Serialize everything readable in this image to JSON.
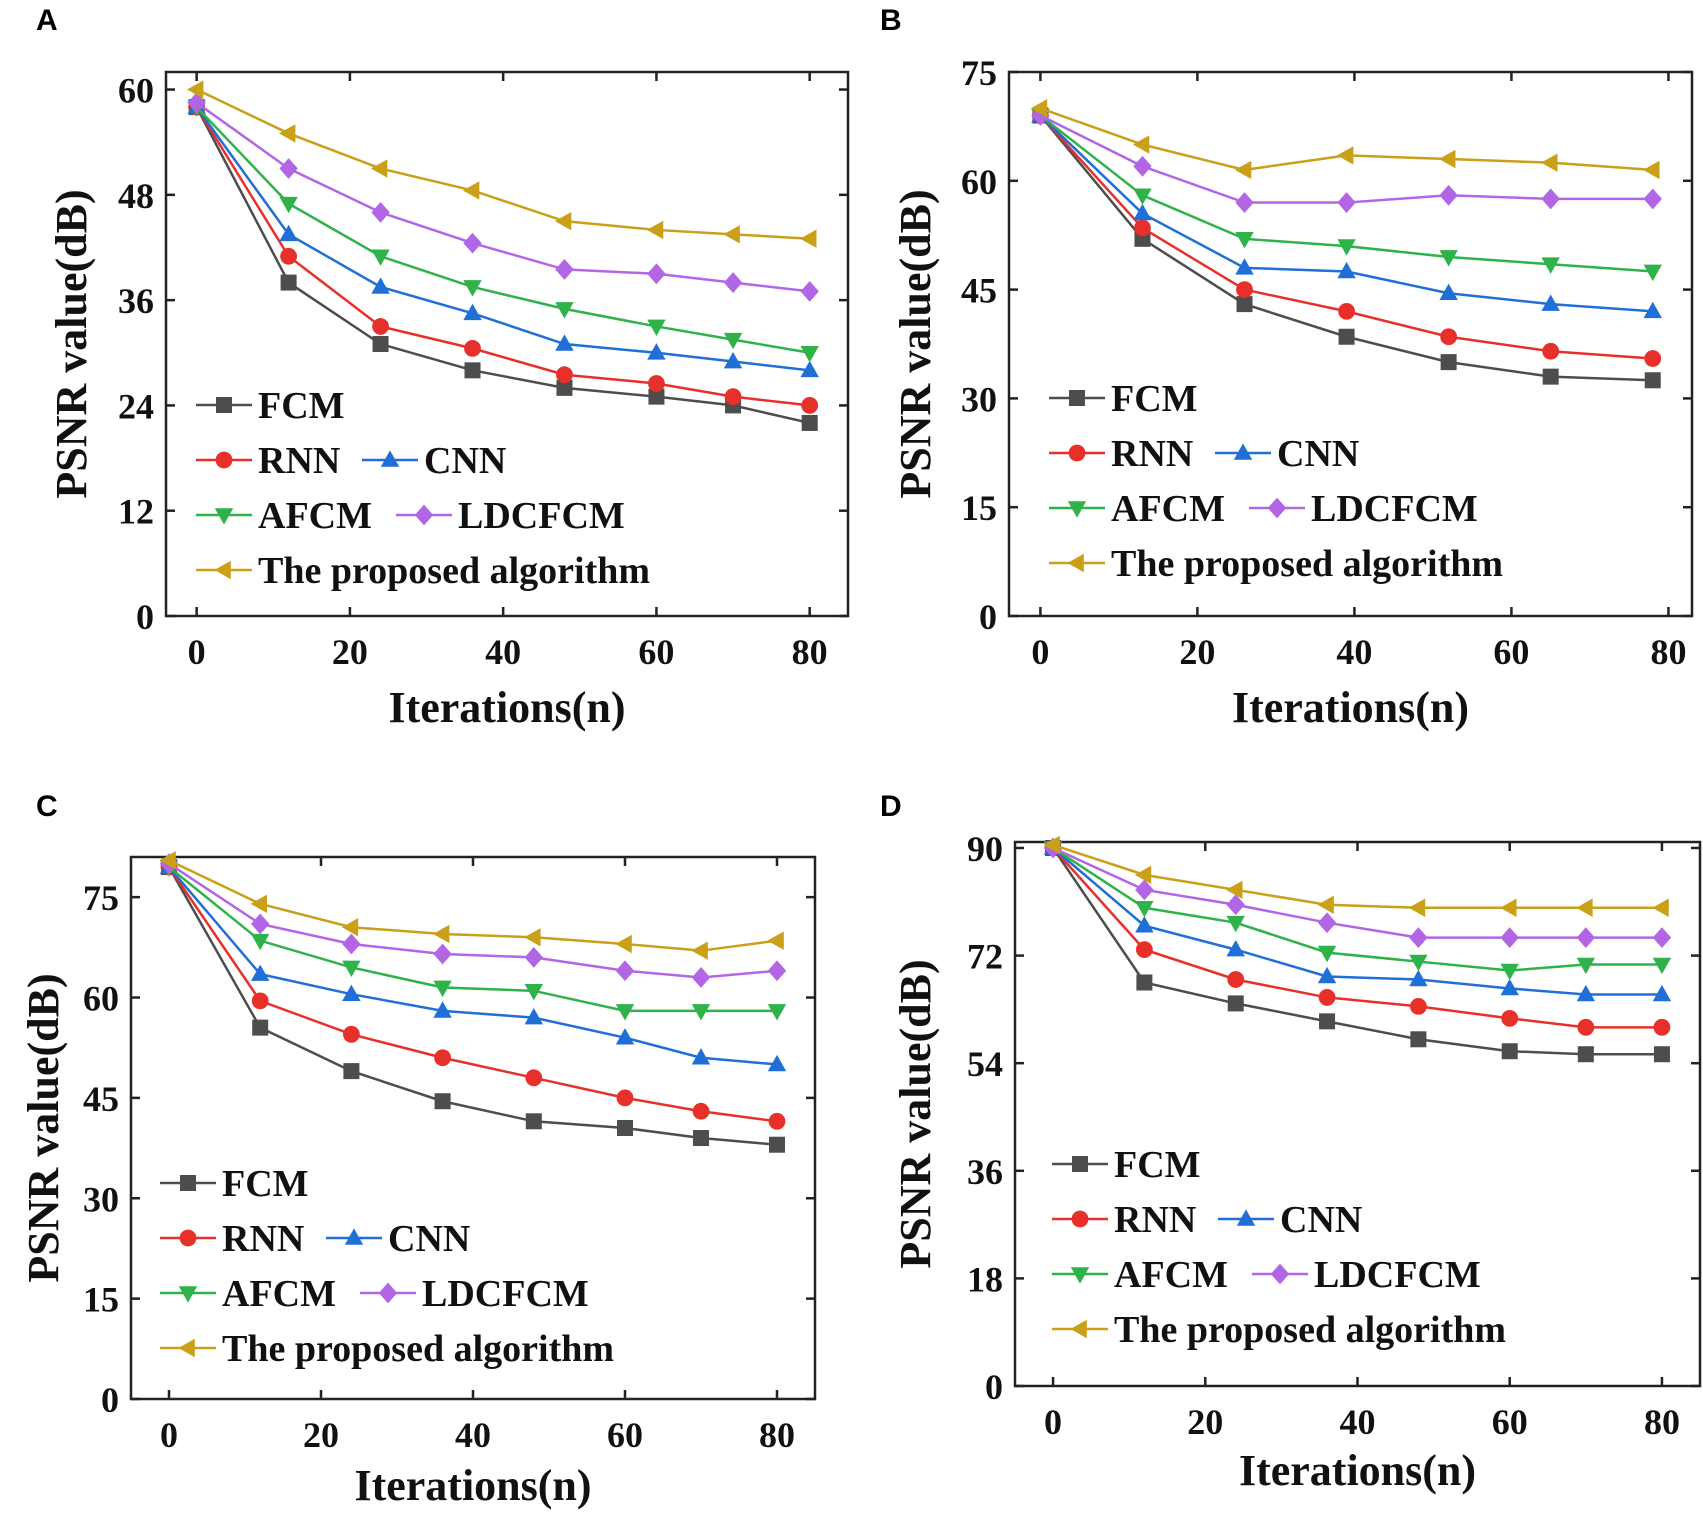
{
  "panels": [
    "A",
    "B",
    "C",
    "D"
  ],
  "series_colors": {
    "FCM": "#4d4d4d",
    "RNN": "#e8302a",
    "CNN": "#1f6fd6",
    "AFCM": "#2fb24a",
    "LDCFCM": "#b266e6",
    "The proposed algorithm": "#c9a018"
  },
  "chart_data": [
    {
      "panel": "A",
      "type": "line",
      "xlabel": "Iterations(n)",
      "ylabel": "PSNR value(dB)",
      "xlim": [
        -4,
        85
      ],
      "ylim": [
        0,
        62
      ],
      "xticks": [
        "0",
        "20",
        "40",
        "60",
        "80"
      ],
      "xtick_values": [
        0,
        20,
        40,
        60,
        80
      ],
      "yticks": [
        "0",
        "12",
        "24",
        "36",
        "48",
        "60"
      ],
      "ytick_values": [
        0,
        12,
        24,
        36,
        48,
        60
      ],
      "legend": [
        "FCM",
        "RNN",
        "CNN",
        "AFCM",
        "LDCFCM",
        "The proposed algorithm"
      ],
      "series": [
        {
          "name": "FCM",
          "x": [
            0,
            12,
            24,
            36,
            48,
            60,
            70,
            80
          ],
          "values": [
            58,
            38,
            31,
            28,
            26,
            25,
            24,
            22
          ]
        },
        {
          "name": "RNN",
          "x": [
            0,
            12,
            24,
            36,
            48,
            60,
            70,
            80
          ],
          "values": [
            58,
            41,
            33,
            30.5,
            27.5,
            26.5,
            25,
            24
          ]
        },
        {
          "name": "CNN",
          "x": [
            0,
            12,
            24,
            36,
            48,
            60,
            70,
            80
          ],
          "values": [
            58,
            43.5,
            37.5,
            34.5,
            31,
            30,
            29,
            28
          ]
        },
        {
          "name": "AFCM",
          "x": [
            0,
            12,
            24,
            36,
            48,
            60,
            70,
            80
          ],
          "values": [
            58,
            47,
            41,
            37.5,
            35,
            33,
            31.5,
            30
          ]
        },
        {
          "name": "LDCFCM",
          "x": [
            0,
            12,
            24,
            36,
            48,
            60,
            70,
            80
          ],
          "values": [
            58.5,
            51,
            46,
            42.5,
            39.5,
            39,
            38,
            37
          ]
        },
        {
          "name": "The proposed algorithm",
          "x": [
            0,
            12,
            24,
            36,
            48,
            60,
            70,
            80
          ],
          "values": [
            60,
            55,
            51,
            48.5,
            45,
            44,
            43.5,
            43
          ]
        }
      ]
    },
    {
      "panel": "B",
      "type": "line",
      "xlabel": "Iterations(n)",
      "ylabel": "PSNR value(dB)",
      "xlim": [
        -4,
        83
      ],
      "ylim": [
        0,
        75
      ],
      "xticks": [
        "0",
        "20",
        "40",
        "60",
        "80"
      ],
      "xtick_values": [
        0,
        20,
        40,
        60,
        80
      ],
      "yticks": [
        "0",
        "15",
        "30",
        "45",
        "60",
        "75"
      ],
      "ytick_values": [
        0,
        15,
        30,
        45,
        60,
        75
      ],
      "legend": [
        "FCM",
        "RNN",
        "CNN",
        "AFCM",
        "LDCFCM",
        "The proposed algorithm"
      ],
      "series": [
        {
          "name": "FCM",
          "x": [
            0,
            13,
            26,
            39,
            52,
            65,
            78
          ],
          "values": [
            69,
            52,
            43,
            38.5,
            35,
            33,
            32.5
          ]
        },
        {
          "name": "RNN",
          "x": [
            0,
            13,
            26,
            39,
            52,
            65,
            78
          ],
          "values": [
            69,
            53.5,
            45,
            42,
            38.5,
            36.5,
            35.5
          ]
        },
        {
          "name": "CNN",
          "x": [
            0,
            13,
            26,
            39,
            52,
            65,
            78
          ],
          "values": [
            69,
            55.5,
            48,
            47.5,
            44.5,
            43,
            42
          ]
        },
        {
          "name": "AFCM",
          "x": [
            0,
            13,
            26,
            39,
            52,
            65,
            78
          ],
          "values": [
            69,
            58,
            52,
            51,
            49.5,
            48.5,
            47.5
          ]
        },
        {
          "name": "LDCFCM",
          "x": [
            0,
            13,
            26,
            39,
            52,
            65,
            78
          ],
          "values": [
            69,
            62,
            57,
            57,
            58,
            57.5,
            57.5
          ]
        },
        {
          "name": "The proposed algorithm",
          "x": [
            0,
            13,
            26,
            39,
            52,
            65,
            78
          ],
          "values": [
            70,
            65,
            61.5,
            63.5,
            63,
            62.5,
            61.5
          ]
        }
      ]
    },
    {
      "panel": "C",
      "type": "line",
      "xlabel": "Iterations(n)",
      "ylabel": "PSNR value(dB)",
      "xlim": [
        -5,
        85
      ],
      "ylim": [
        0,
        81
      ],
      "xticks": [
        "0",
        "20",
        "40",
        "60",
        "80"
      ],
      "xtick_values": [
        0,
        20,
        40,
        60,
        80
      ],
      "yticks": [
        "0",
        "15",
        "30",
        "45",
        "60",
        "75"
      ],
      "ytick_values": [
        0,
        15,
        30,
        45,
        60,
        75
      ],
      "legend": [
        "FCM",
        "RNN",
        "CNN",
        "AFCM",
        "LDCFCM",
        "The proposed algorithm"
      ],
      "series": [
        {
          "name": "FCM",
          "x": [
            0,
            12,
            24,
            36,
            48,
            60,
            70,
            80
          ],
          "values": [
            79.5,
            55.5,
            49,
            44.5,
            41.5,
            40.5,
            39,
            38
          ]
        },
        {
          "name": "RNN",
          "x": [
            0,
            12,
            24,
            36,
            48,
            60,
            70,
            80
          ],
          "values": [
            79.5,
            59.5,
            54.5,
            51,
            48,
            45,
            43,
            41.5
          ]
        },
        {
          "name": "CNN",
          "x": [
            0,
            12,
            24,
            36,
            48,
            60,
            70,
            80
          ],
          "values": [
            79.5,
            63.5,
            60.5,
            58,
            57,
            54,
            51,
            50
          ]
        },
        {
          "name": "AFCM",
          "x": [
            0,
            12,
            24,
            36,
            48,
            60,
            70,
            80
          ],
          "values": [
            79.5,
            68.5,
            64.5,
            61.5,
            61,
            58,
            58,
            58
          ]
        },
        {
          "name": "LDCFCM",
          "x": [
            0,
            12,
            24,
            36,
            48,
            60,
            70,
            80
          ],
          "values": [
            80,
            71,
            68,
            66.5,
            66,
            64,
            63,
            64
          ]
        },
        {
          "name": "The proposed algorithm",
          "x": [
            0,
            12,
            24,
            36,
            48,
            60,
            70,
            80
          ],
          "values": [
            80.5,
            74,
            70.5,
            69.5,
            69,
            68,
            67,
            68.5
          ]
        }
      ]
    },
    {
      "panel": "D",
      "type": "line",
      "xlabel": "Iterations(n)",
      "ylabel": "PSNR value(dB)",
      "xlim": [
        -5,
        85
      ],
      "ylim": [
        0,
        91
      ],
      "xticks": [
        "0",
        "20",
        "40",
        "60",
        "80"
      ],
      "xtick_values": [
        0,
        20,
        40,
        60,
        80
      ],
      "yticks": [
        "0",
        "18",
        "36",
        "54",
        "72",
        "90"
      ],
      "ytick_values": [
        0,
        18,
        36,
        54,
        72,
        90
      ],
      "legend": [
        "FCM",
        "RNN",
        "CNN",
        "AFCM",
        "LDCFCM",
        "The proposed algorithm"
      ],
      "series": [
        {
          "name": "FCM",
          "x": [
            0,
            12,
            24,
            36,
            48,
            60,
            70,
            80
          ],
          "values": [
            90,
            67.5,
            64,
            61,
            58,
            56,
            55.5,
            55.5
          ]
        },
        {
          "name": "RNN",
          "x": [
            0,
            12,
            24,
            36,
            48,
            60,
            70,
            80
          ],
          "values": [
            90,
            73,
            68,
            65,
            63.5,
            61.5,
            60,
            60
          ]
        },
        {
          "name": "CNN",
          "x": [
            0,
            12,
            24,
            36,
            48,
            60,
            70,
            80
          ],
          "values": [
            90,
            77,
            73,
            68.5,
            68,
            66.5,
            65.5,
            65.5
          ]
        },
        {
          "name": "AFCM",
          "x": [
            0,
            12,
            24,
            36,
            48,
            60,
            70,
            80
          ],
          "values": [
            90,
            80,
            77.5,
            72.5,
            71,
            69.5,
            70.5,
            70.5
          ]
        },
        {
          "name": "LDCFCM",
          "x": [
            0,
            12,
            24,
            36,
            48,
            60,
            70,
            80
          ],
          "values": [
            90,
            83,
            80.5,
            77.5,
            75,
            75,
            75,
            75
          ]
        },
        {
          "name": "The proposed algorithm",
          "x": [
            0,
            12,
            24,
            36,
            48,
            60,
            70,
            80
          ],
          "values": [
            90.5,
            85.5,
            83,
            80.5,
            80,
            80,
            80,
            80
          ]
        }
      ]
    }
  ]
}
